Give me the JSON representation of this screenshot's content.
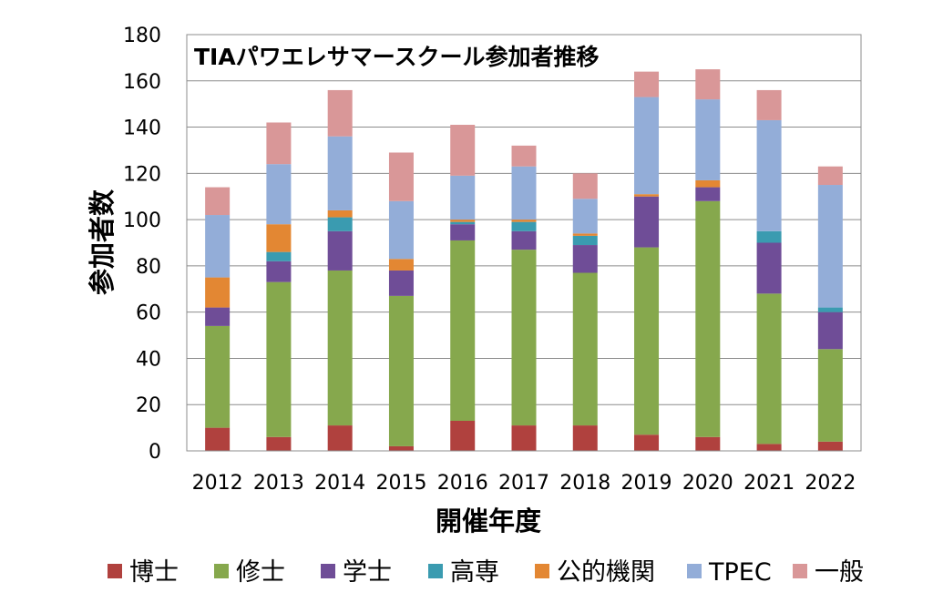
{
  "colors": {
    "博士": "#b0413e",
    "修士": "#86a84d",
    "学士": "#6f4d97",
    "高専": "#3a9bb0",
    "公的機関": "#e38733",
    "TPEC": "#93add8",
    "一般": "#d99798"
  },
  "chart_data": {
    "type": "bar",
    "stacked": true,
    "title": "TIAパワエレサマースクール参加者推移",
    "xlabel": "開催年度",
    "ylabel": "参加者数",
    "ylim": [
      0,
      180
    ],
    "yticks": [
      "0",
      "20",
      "40",
      "60",
      "80",
      "100",
      "120",
      "140",
      "160",
      "180"
    ],
    "categories": [
      "2012",
      "2013",
      "2014",
      "2015",
      "2016",
      "2017",
      "2018",
      "2019",
      "2020",
      "2021",
      "2022"
    ],
    "grid": true,
    "legend_position": "bottom",
    "series": [
      {
        "name": "博士",
        "values": [
          10,
          6,
          11,
          2,
          13,
          11,
          11,
          7,
          6,
          3,
          4
        ]
      },
      {
        "name": "修士",
        "values": [
          44,
          67,
          67,
          65,
          78,
          76,
          66,
          81,
          102,
          65,
          40
        ]
      },
      {
        "name": "学士",
        "values": [
          8,
          9,
          17,
          11,
          7,
          8,
          12,
          22,
          6,
          22,
          16
        ]
      },
      {
        "name": "高専",
        "values": [
          0,
          4,
          6,
          0,
          1,
          4,
          4,
          0,
          0,
          5,
          2
        ]
      },
      {
        "name": "公的機関",
        "values": [
          13,
          12,
          3,
          5,
          1,
          1,
          1,
          1,
          3,
          0,
          0
        ]
      },
      {
        "name": "TPEC",
        "values": [
          27,
          26,
          32,
          25,
          19,
          23,
          15,
          42,
          35,
          48,
          53
        ]
      },
      {
        "name": "一般",
        "values": [
          12,
          18,
          20,
          21,
          22,
          9,
          11,
          11,
          13,
          13,
          8
        ]
      }
    ]
  }
}
